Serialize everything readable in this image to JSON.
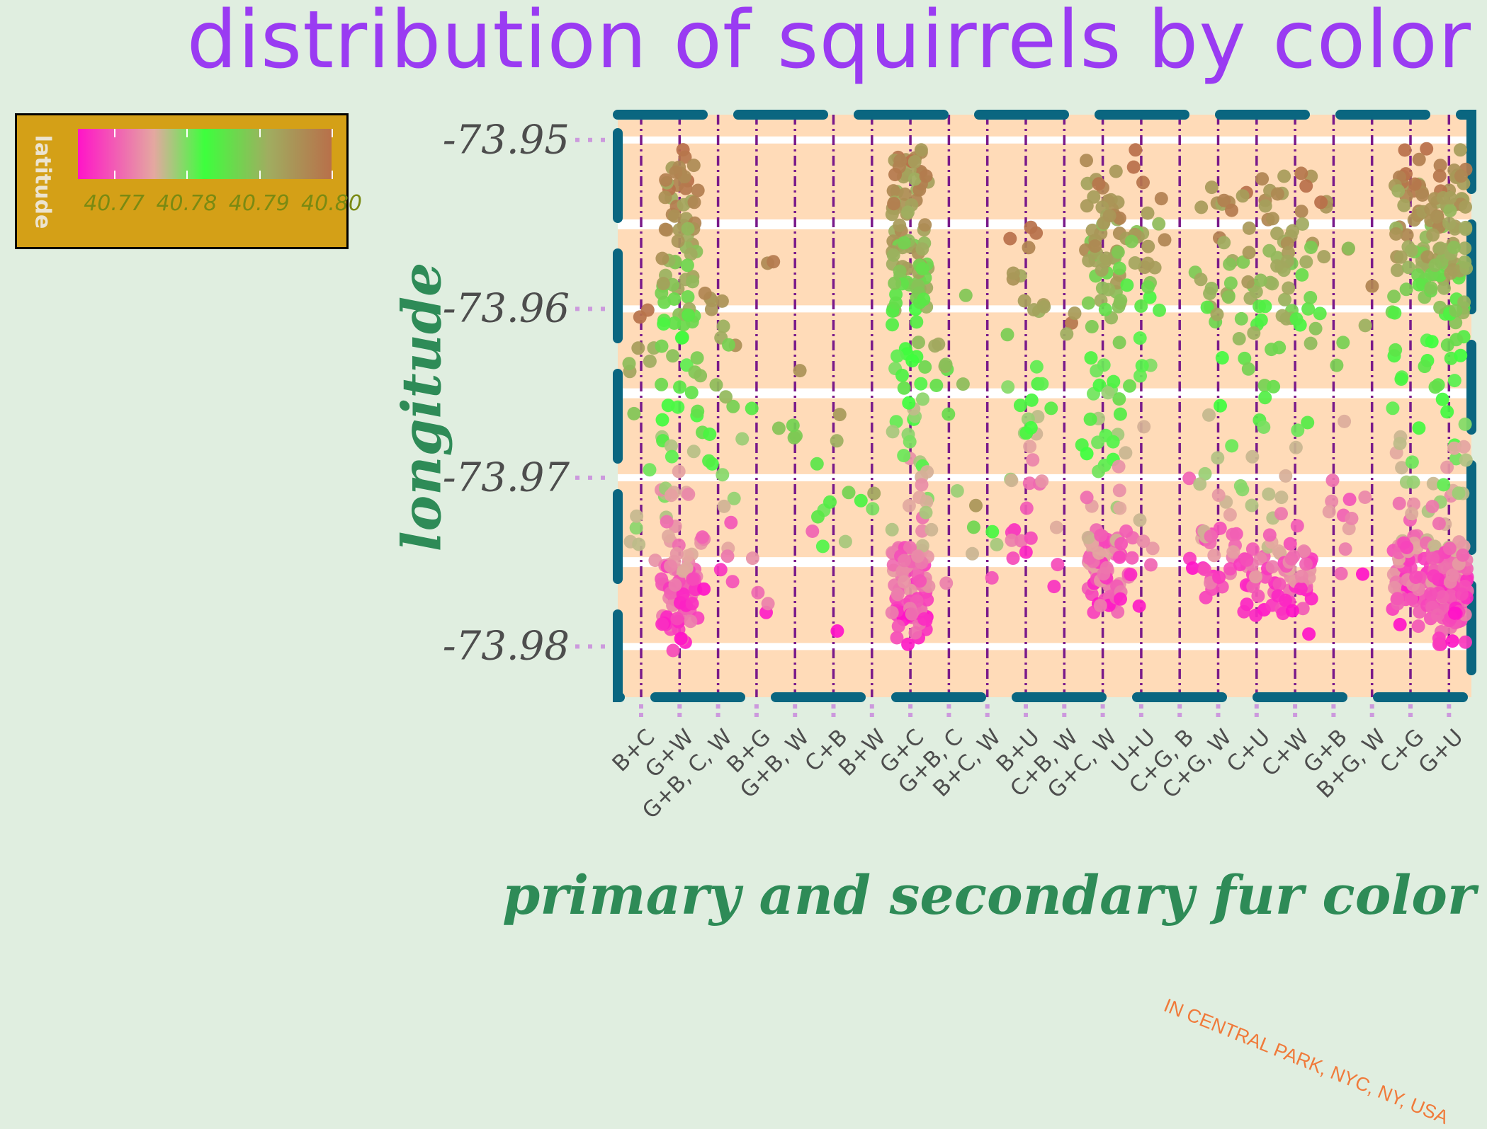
{
  "chart_data": {
    "type": "scatter",
    "title": "distribution of squirrels by color",
    "xlabel": "primary and secondary fur color",
    "ylabel": "longitude",
    "caption": "IN CENTRAL PARK, NYC, NY, USA",
    "categories": [
      "B+C",
      "G+W",
      "G+B, C, W",
      "B+G",
      "G+B, W",
      "C+B",
      "B+W",
      "G+C",
      "G+B, C",
      "B+C, W",
      "B+U",
      "C+B, W",
      "G+C, W",
      "U+U",
      "C+G, B",
      "C+G, W",
      "C+U",
      "C+W",
      "G+B",
      "B+G, W",
      "C+G",
      "G+U"
    ],
    "y_ticks": [
      -73.95,
      -73.96,
      -73.97,
      -73.98
    ],
    "y_tick_labels": [
      "-73.95",
      "-73.96",
      "-73.97",
      "-73.98"
    ],
    "ylim": [
      -73.983,
      -73.9485
    ],
    "legend": {
      "title": "latitude",
      "placement": "top-left",
      "tick_labels": [
        "40.77",
        "40.78",
        "40.79",
        "40.80"
      ],
      "range": [
        40.765,
        40.8
      ],
      "colors": [
        "#ff14c8",
        "#e4a8a0",
        "#3dff3d",
        "#a0ad60",
        "#b8704a"
      ]
    },
    "series": [
      {
        "category": "B+C",
        "n": 14,
        "lon_range": [
          -73.978,
          -73.96
        ]
      },
      {
        "category": "G+W",
        "n": 170,
        "lon_range": [
          -73.9805,
          -73.9505
        ]
      },
      {
        "category": "G+B, C, W",
        "n": 30,
        "lon_range": [
          -73.977,
          -73.958
        ]
      },
      {
        "category": "B+G",
        "n": 8,
        "lon_range": [
          -73.979,
          -73.9565
        ]
      },
      {
        "category": "G+B, W",
        "n": 6,
        "lon_range": [
          -73.976,
          -73.9625
        ]
      },
      {
        "category": "C+B",
        "n": 10,
        "lon_range": [
          -73.9795,
          -73.964
        ]
      },
      {
        "category": "B+W",
        "n": 3,
        "lon_range": [
          -73.9725,
          -73.9705
        ]
      },
      {
        "category": "G+C",
        "n": 200,
        "lon_range": [
          -73.98,
          -73.9495
        ]
      },
      {
        "category": "G+B, C",
        "n": 12,
        "lon_range": [
          -73.9795,
          -73.955
        ]
      },
      {
        "category": "B+C, W",
        "n": 6,
        "lon_range": [
          -73.976,
          -73.971
        ]
      },
      {
        "category": "B+U",
        "n": 40,
        "lon_range": [
          -73.9755,
          -73.955
        ]
      },
      {
        "category": "C+B, W",
        "n": 8,
        "lon_range": [
          -73.9765,
          -73.96
        ]
      },
      {
        "category": "G+C, W",
        "n": 150,
        "lon_range": [
          -73.979,
          -73.951
        ]
      },
      {
        "category": "U+U",
        "n": 40,
        "lon_range": [
          -73.978,
          -73.95
        ]
      },
      {
        "category": "C+G, B",
        "n": 6,
        "lon_range": [
          -73.976,
          -73.952
        ]
      },
      {
        "category": "C+G, W",
        "n": 60,
        "lon_range": [
          -73.978,
          -73.952
        ]
      },
      {
        "category": "C+U",
        "n": 70,
        "lon_range": [
          -73.9795,
          -73.951
        ]
      },
      {
        "category": "C+W",
        "n": 80,
        "lon_range": [
          -73.9795,
          -73.9505
        ]
      },
      {
        "category": "G+B",
        "n": 20,
        "lon_range": [
          -73.9765,
          -73.953
        ]
      },
      {
        "category": "B+G, W",
        "n": 4,
        "lon_range": [
          -73.9765,
          -73.958
        ]
      },
      {
        "category": "C+G",
        "n": 130,
        "lon_range": [
          -73.979,
          -73.9505
        ]
      },
      {
        "category": "G+U",
        "n": 220,
        "lon_range": [
          -73.98,
          -73.95
        ]
      }
    ]
  }
}
